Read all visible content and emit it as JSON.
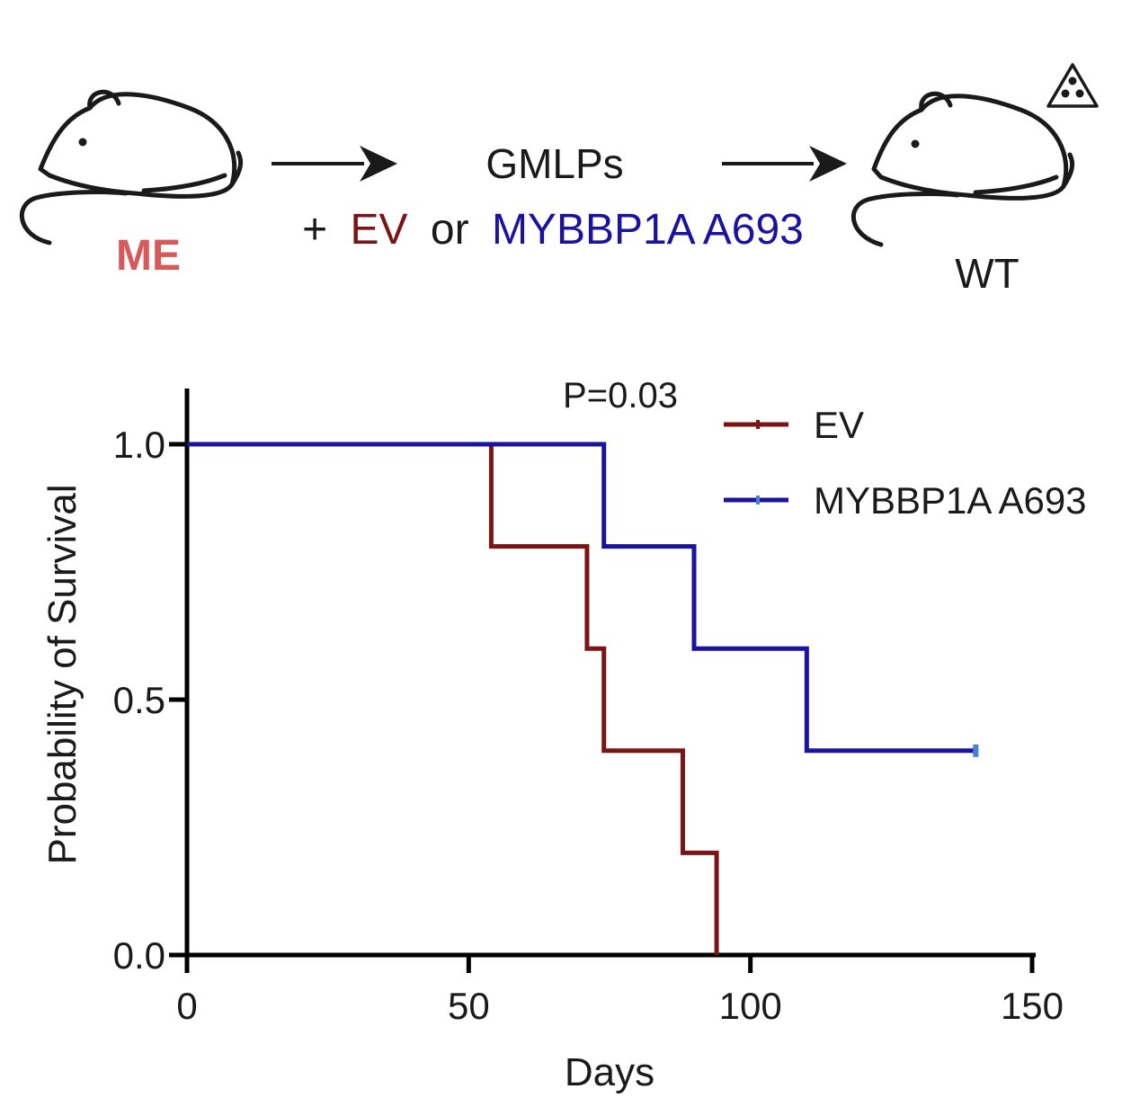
{
  "schematic": {
    "donor_label": "ME",
    "cells_label": "GMLPs",
    "plus": "+",
    "ev_label": "EV",
    "or_label": "or",
    "construct_label": "MYBBP1A A693",
    "recipient_label": "WT",
    "irradiation_icon": "radiation-warning-icon",
    "mouse_icon": "mouse-icon",
    "arrow_icon": "right-arrow-icon",
    "colors": {
      "donor": "#d65a5a",
      "ev": "#7b1414",
      "construct": "#1a12a0",
      "text": "#1a1a1a"
    }
  },
  "chart_data": {
    "type": "line",
    "step": true,
    "title": "",
    "annotation": "P=0.03",
    "xlabel": "Days",
    "ylabel": "Probability of Survival",
    "xlim": [
      0,
      150
    ],
    "ylim": [
      0,
      1.0
    ],
    "xticks": [
      0,
      50,
      100,
      150
    ],
    "xtick_labels": [
      "0",
      "50",
      "100",
      "150"
    ],
    "yticks": [
      0.0,
      0.5,
      1.0
    ],
    "ytick_labels": [
      "0.0",
      "0.5",
      "1.0"
    ],
    "grid": false,
    "legend_position": "top-right",
    "series": [
      {
        "name": "EV",
        "color": "#7b1414",
        "x": [
          0,
          54,
          71,
          74,
          88,
          94
        ],
        "y": [
          1.0,
          0.8,
          0.6,
          0.4,
          0.2,
          0.0
        ],
        "censored": []
      },
      {
        "name": "MYBBP1A A693",
        "color": "#1a12a0",
        "censor_color": "#4a7fd4",
        "x": [
          0,
          74,
          90,
          110,
          140
        ],
        "y": [
          1.0,
          0.8,
          0.6,
          0.4,
          0.4
        ],
        "censored": [
          [
            140,
            0.4
          ]
        ]
      }
    ]
  }
}
